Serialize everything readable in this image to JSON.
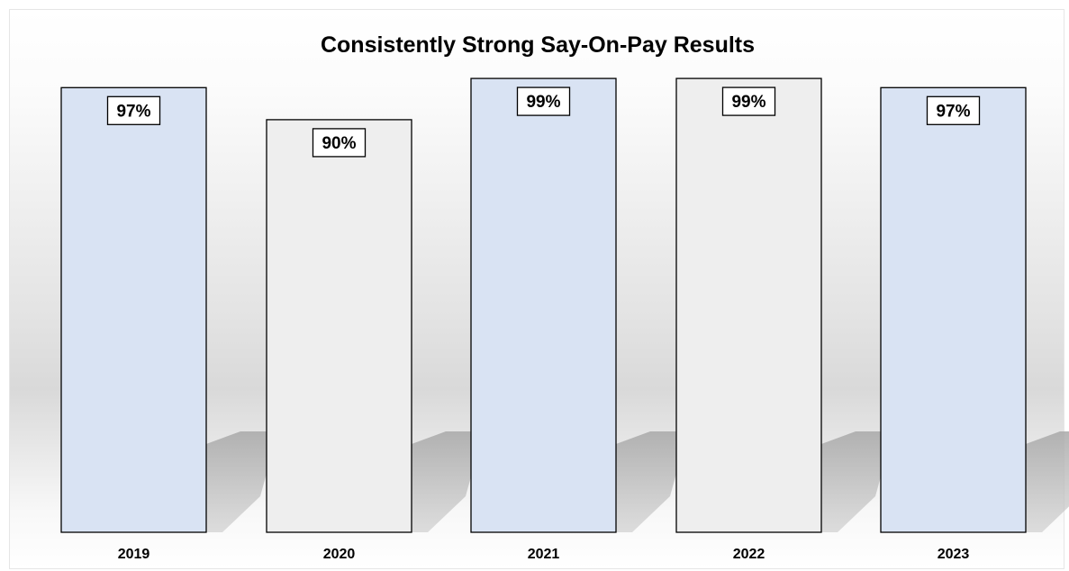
{
  "chart_data": {
    "type": "bar",
    "title": "Consistently Strong Say-On-Pay Results",
    "xlabel": "",
    "ylabel": "",
    "categories": [
      "2019",
      "2020",
      "2021",
      "2022",
      "2023"
    ],
    "values": [
      97,
      90,
      99,
      99,
      97
    ],
    "data_labels": [
      "97%",
      "90%",
      "99%",
      "99%",
      "97%"
    ],
    "unit": "%",
    "ylim": [
      0,
      100
    ],
    "grid": false,
    "legend": "none",
    "colors": {
      "bar_fills": [
        "#d9e3f3",
        "#eeeeee",
        "#d9e3f3",
        "#eeeeee",
        "#d9e3f3"
      ],
      "bar_stroke": "#000000",
      "label_box_fill": "#ffffff",
      "shadow": "#b4b4b4"
    }
  }
}
